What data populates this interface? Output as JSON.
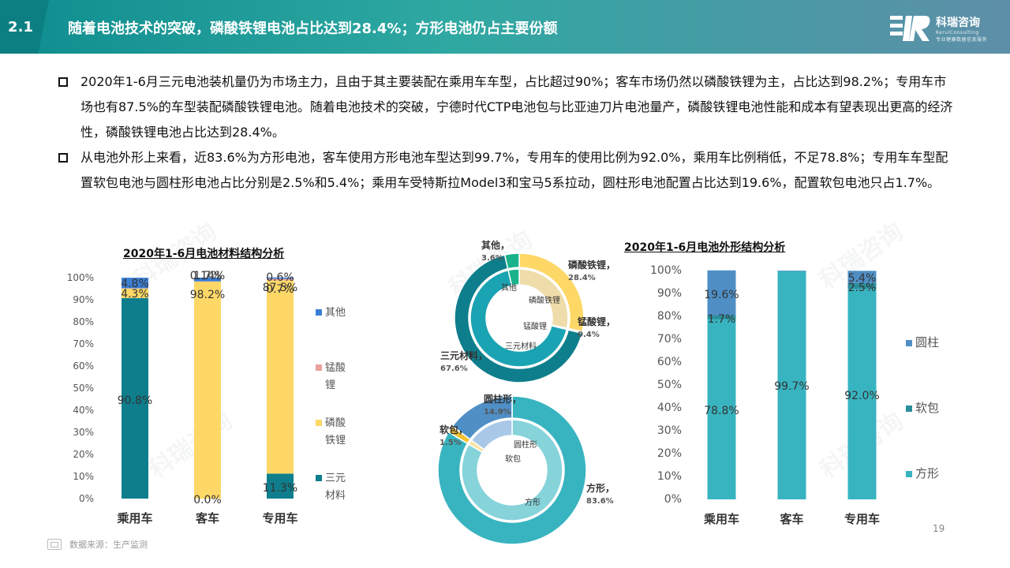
{
  "header": {
    "section": "2.1",
    "title": "随着电池技术的突破，磷酸铁锂电池占比达到28.4%；方形电池仍占主要份额",
    "logo_cn": "科瑞咨询",
    "logo_en": "KeruiConsulting",
    "logo_sub": "专业健康数据信息服务"
  },
  "bullets": [
    "2020年1-6月三元电池装机量仍为市场主力，且由于其主要装配在乘用车车型，占比超过90%；客车市场仍然以磷酸铁锂为主，占比达到98.2%；专用车市场也有87.5%的车型装配磷酸铁锂电池。随着电池技术的突破，宁德时代CTP电池包与比亚迪刀片电池量产，磷酸铁锂电池性能和成本有望表现出更高的经济性，磷酸铁锂电池占比达到28.4%。",
    "从电池外形上来看，近83.6%为方形电池，客车使用方形电池车型达到99.7%，专用车的使用比例为92.0%，乘用车比例稍低，不足78.8%；专用车车型配置软包电池与圆柱形电池占比分别是2.5%和5.4%；乘用车受特斯拉Model3和宝马5系拉动，圆柱形电池配置占比达到19.6%，配置软包电池只占1.7%。"
  ],
  "watermark": "科瑞咨询",
  "page_number": "19",
  "source": "数据来源：生产监测",
  "colors": {
    "teal_dark": "#0e7e8c",
    "yellow": "#fdd867",
    "blue": "#3b7fd4",
    "pink": "#e8a19b",
    "teal": "#38b4c0",
    "teal_deep": "#2a8f9b",
    "steel": "#4f8fc6",
    "green": "#19b28a",
    "sand": "#eedcaa"
  },
  "chart_data": [
    {
      "type": "bar",
      "stacked": true,
      "title": "2020年1-6月电池材料结构分析",
      "categories": [
        "乘用车",
        "客车",
        "专用车"
      ],
      "y_ticks": [
        "0%",
        "10%",
        "20%",
        "30%",
        "40%",
        "50%",
        "60%",
        "70%",
        "80%",
        "90%",
        "100%"
      ],
      "ylim": [
        0,
        100
      ],
      "legend_position": "right",
      "series": [
        {
          "name": "三元材料",
          "values": [
            90.8,
            0.0,
            11.3
          ],
          "labels": [
            "90.8%",
            "0.0%",
            "11.3%"
          ],
          "color": "#0e7e8c"
        },
        {
          "name": "磷酸铁锂",
          "values": [
            4.3,
            98.2,
            87.5
          ],
          "labels": [
            "4.3%",
            "98.2%",
            "87.5%"
          ],
          "color": "#fdd867"
        },
        {
          "name": "锰酸锂",
          "values": [
            0.1,
            0.14,
            0.7
          ],
          "labels": [
            "",
            "0.14%",
            "0.7%"
          ],
          "color": "#e8a19b"
        },
        {
          "name": "其他",
          "values": [
            4.8,
            1.7,
            0.6
          ],
          "labels": [
            "4.8%",
            "1.7%",
            "0.6%"
          ],
          "color": "#3b7fd4"
        }
      ]
    },
    {
      "type": "pie",
      "variant": "double-donut",
      "outer": [
        {
          "name": "磷酸铁锂",
          "value": 28.4,
          "label": "磷酸铁锂，28.4%",
          "color": "#fdd867"
        },
        {
          "name": "锰酸锂",
          "value": 0.4,
          "label": "锰酸锂，0.4%",
          "color": "#e8a19b"
        },
        {
          "name": "三元材料",
          "value": 67.6,
          "label": "三元材料，67.6%",
          "color": "#0e7e8c"
        },
        {
          "name": "其他",
          "value": 3.6,
          "label": "其他，3.6%",
          "color": "#19b28a"
        }
      ],
      "inner_labels": [
        "磷酸铁锂",
        "锰酸锂",
        "三元材料",
        "其他"
      ]
    },
    {
      "type": "pie",
      "variant": "double-donut",
      "outer": [
        {
          "name": "方形",
          "value": 83.6,
          "label": "方形，83.6%",
          "color": "#38b4c0"
        },
        {
          "name": "软包",
          "value": 1.5,
          "label": "软包，1.5%",
          "color": "#f2c12e"
        },
        {
          "name": "圆柱形",
          "value": 14.9,
          "label": "圆柱形，14.9%",
          "color": "#4f8fc6"
        }
      ],
      "inner_labels": [
        "方形",
        "软包",
        "圆柱形"
      ]
    },
    {
      "type": "bar",
      "stacked": true,
      "title": "2020年1-6月电池外形结构分析",
      "categories": [
        "乘用车",
        "客车",
        "专用车"
      ],
      "y_ticks": [
        "0%",
        "10%",
        "20%",
        "30%",
        "40%",
        "50%",
        "60%",
        "70%",
        "80%",
        "90%",
        "100%"
      ],
      "ylim": [
        0,
        100
      ],
      "legend_position": "right",
      "series": [
        {
          "name": "方形",
          "values": [
            78.8,
            99.7,
            92.0
          ],
          "labels": [
            "78.8%",
            "99.7%",
            "92.0%"
          ],
          "color": "#38b4c0"
        },
        {
          "name": "软包",
          "values": [
            1.7,
            0.1,
            2.5
          ],
          "labels": [
            "1.7%",
            "",
            "2.5%"
          ],
          "color": "#2a8f9b"
        },
        {
          "name": "圆柱",
          "values": [
            19.6,
            0.2,
            5.4
          ],
          "labels": [
            "19.6%",
            "",
            "5.4%"
          ],
          "color": "#4f8fc6"
        }
      ]
    }
  ]
}
